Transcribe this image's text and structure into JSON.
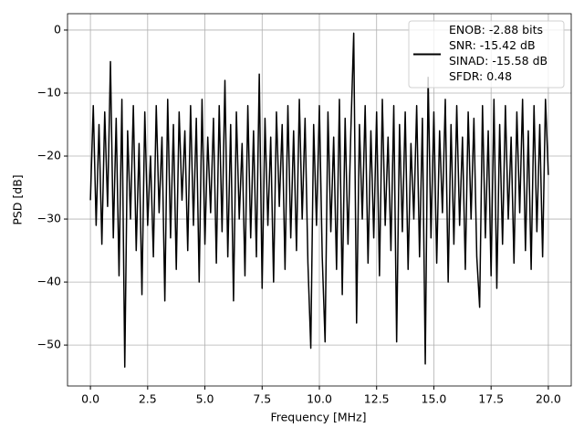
{
  "chart_data": {
    "type": "line",
    "xlabel": "Frequency [MHz]",
    "ylabel": "PSD [dB]",
    "xlim": [
      -1,
      21
    ],
    "ylim": [
      -56.5,
      2.6
    ],
    "xticks": [
      {
        "value": 0,
        "label": "0.0"
      },
      {
        "value": 2.5,
        "label": "2.5"
      },
      {
        "value": 5,
        "label": "5.0"
      },
      {
        "value": 7.5,
        "label": "7.5"
      },
      {
        "value": 10,
        "label": "10.0"
      },
      {
        "value": 12.5,
        "label": "12.5"
      },
      {
        "value": 15,
        "label": "15.0"
      },
      {
        "value": 17.5,
        "label": "17.5"
      },
      {
        "value": 20,
        "label": "20.0"
      }
    ],
    "yticks": [
      0,
      {
        "value": -10,
        "label": "−10"
      },
      {
        "value": -20,
        "label": "−20"
      },
      {
        "value": -30,
        "label": "−30"
      },
      {
        "value": -40,
        "label": "−40"
      },
      {
        "value": -50,
        "label": "−50"
      }
    ],
    "grid": true,
    "legend": "upper right",
    "x": [
      0,
      0.125,
      0.25,
      0.375,
      0.5,
      0.625,
      0.75,
      0.875,
      1,
      1.125,
      1.25,
      1.375,
      1.5,
      1.625,
      1.75,
      1.875,
      2,
      2.125,
      2.25,
      2.375,
      2.5,
      2.625,
      2.75,
      2.875,
      3,
      3.125,
      3.25,
      3.375,
      3.5,
      3.625,
      3.75,
      3.875,
      4,
      4.125,
      4.25,
      4.375,
      4.5,
      4.625,
      4.75,
      4.875,
      5,
      5.125,
      5.25,
      5.375,
      5.5,
      5.625,
      5.75,
      5.875,
      6,
      6.125,
      6.25,
      6.375,
      6.5,
      6.625,
      6.75,
      6.875,
      7,
      7.125,
      7.25,
      7.375,
      7.5,
      7.625,
      7.75,
      7.875,
      8,
      8.125,
      8.25,
      8.375,
      8.5,
      8.625,
      8.75,
      8.875,
      9,
      9.125,
      9.25,
      9.375,
      9.5,
      9.625,
      9.75,
      9.875,
      10,
      10.125,
      10.25,
      10.375,
      10.5,
      10.625,
      10.75,
      10.875,
      11,
      11.125,
      11.25,
      11.375,
      11.5,
      11.625,
      11.75,
      11.875,
      12,
      12.125,
      12.25,
      12.375,
      12.5,
      12.625,
      12.75,
      12.875,
      13,
      13.125,
      13.25,
      13.375,
      13.5,
      13.625,
      13.75,
      13.875,
      14,
      14.125,
      14.25,
      14.375,
      14.5,
      14.625,
      14.75,
      14.875,
      15,
      15.125,
      15.25,
      15.375,
      15.5,
      15.625,
      15.75,
      15.875,
      16,
      16.125,
      16.25,
      16.375,
      16.5,
      16.625,
      16.75,
      16.875,
      17,
      17.125,
      17.25,
      17.375,
      17.5,
      17.625,
      17.75,
      17.875,
      18,
      18.125,
      18.25,
      18.375,
      18.5,
      18.625,
      18.75,
      18.875,
      19,
      19.125,
      19.25,
      19.375,
      19.5,
      19.625,
      19.75,
      19.875,
      20
    ],
    "series": [
      {
        "name": "ENOB: -2.88 bits\nSNR: -15.42 dB\nSINAD: -15.58 dB\nSFDR: 0.48",
        "color": "#000000",
        "values": [
          -27,
          -12,
          -31,
          -15,
          -34,
          -13,
          -28,
          -5,
          -33,
          -14,
          -39,
          -11,
          -53.5,
          -16,
          -30,
          -12,
          -35,
          -18,
          -42,
          -13,
          -31,
          -20,
          -36,
          -12,
          -29,
          -17,
          -43,
          -11,
          -33,
          -15,
          -38,
          -13,
          -27,
          -16,
          -35,
          -12,
          -31,
          -14,
          -40,
          -11,
          -34,
          -17,
          -29,
          -14,
          -37,
          -12,
          -32,
          -8,
          -36,
          -15,
          -43,
          -13,
          -30,
          -18,
          -39,
          -12,
          -33,
          -16,
          -36,
          -7,
          -41,
          -14,
          -31,
          -17,
          -40,
          -13,
          -28,
          -15,
          -38,
          -12,
          -33,
          -16,
          -35,
          -11,
          -30,
          -14,
          -37,
          -50.5,
          -15,
          -31,
          -12,
          -36,
          -49.5,
          -13,
          -32,
          -17,
          -38,
          -11,
          -42,
          -14,
          -34,
          -16,
          -0.5,
          -46.5,
          -15,
          -30,
          -12,
          -37,
          -16,
          -33,
          -13,
          -39,
          -11,
          -31,
          -17,
          -35,
          -12,
          -49.5,
          -15,
          -32,
          -13,
          -38,
          -18,
          -30,
          -12,
          -36,
          -14,
          -53,
          -7.5,
          -33,
          -13,
          -37,
          -16,
          -29,
          -11,
          -40,
          -15,
          -34,
          -12,
          -31,
          -17,
          -38,
          -13,
          -30,
          -14,
          -36,
          -44,
          -12,
          -33,
          -16,
          -39,
          -11,
          -41,
          -15,
          -34,
          -12,
          -30,
          -17,
          -37,
          -13,
          -29,
          -11,
          -35,
          -16,
          -38,
          -12,
          -32,
          -15,
          -36,
          -11,
          -23
        ]
      }
    ]
  }
}
